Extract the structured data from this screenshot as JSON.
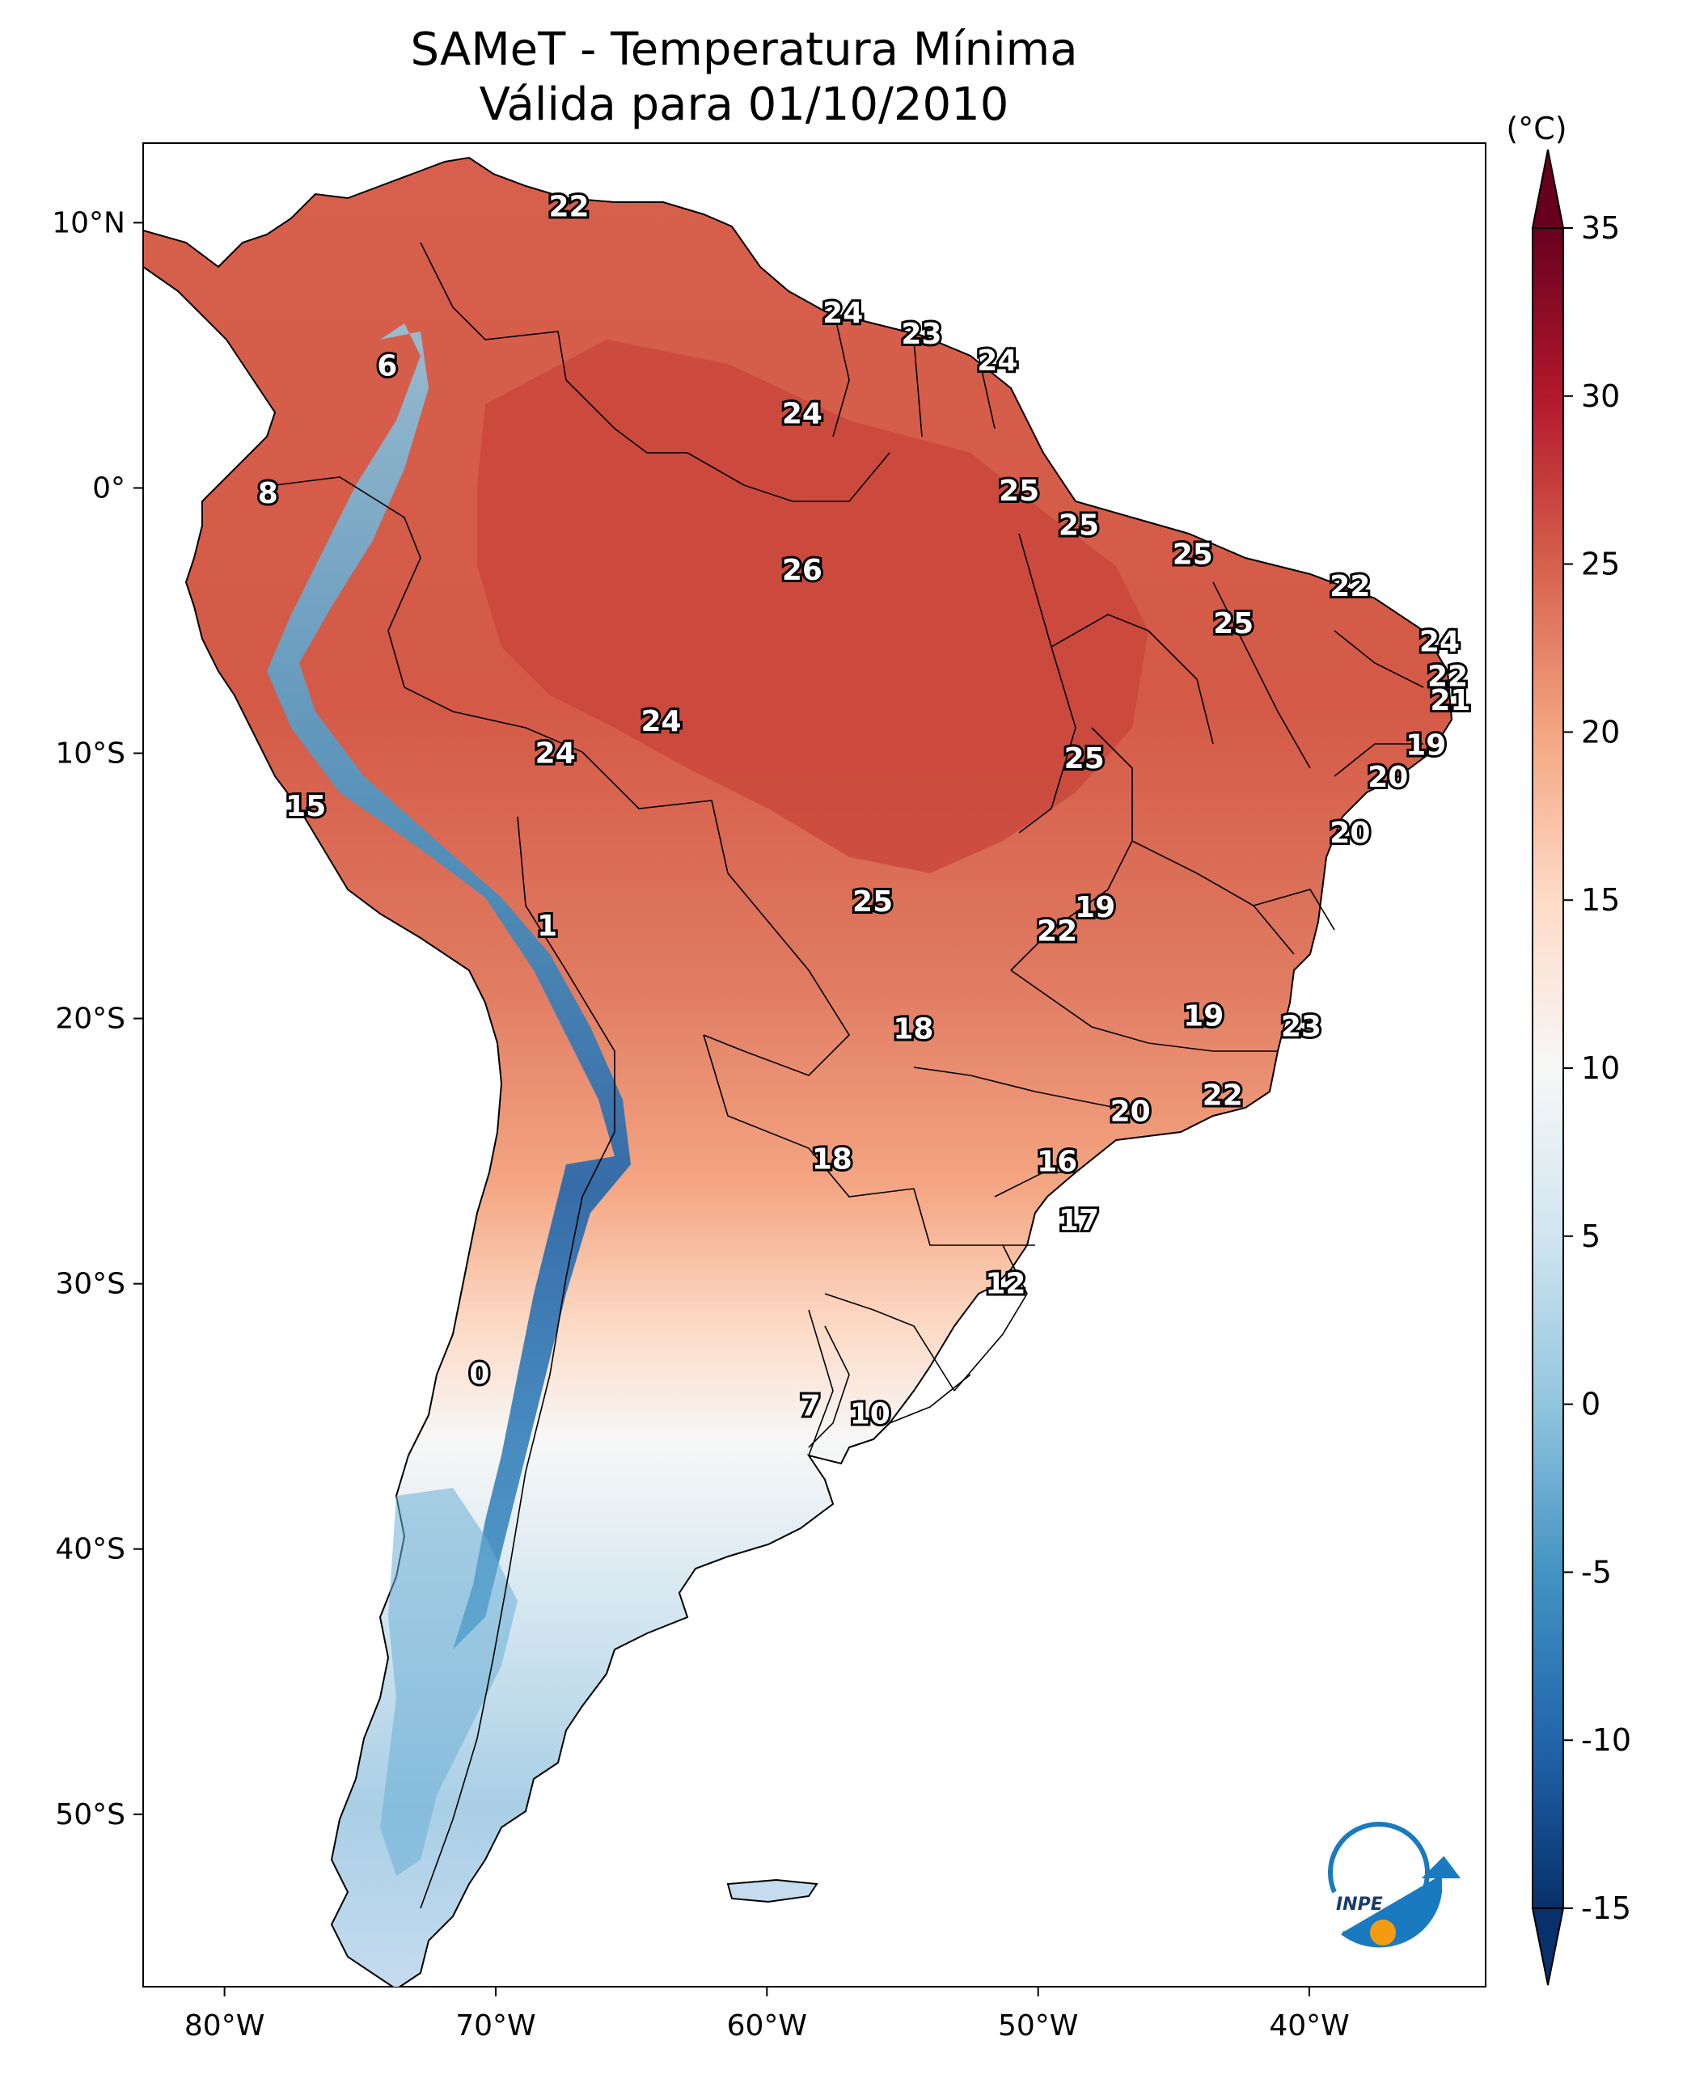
{
  "title": {
    "line1": "SAMeT - Temperatura Mínima",
    "line2": "Válida para 01/10/2010"
  },
  "colorbar": {
    "unit": "(°C)",
    "ticks": [
      "35",
      "30",
      "25",
      "20",
      "15",
      "10",
      "5",
      "0",
      "-5",
      "-10",
      "-15"
    ],
    "range": [
      -15,
      35
    ],
    "colors": [
      "#08306b",
      "#2166ac",
      "#4393c3",
      "#92c5de",
      "#d1e5f0",
      "#f7f7f7",
      "#fddbc7",
      "#f4a582",
      "#d6604d",
      "#b2182b",
      "#67001f"
    ]
  },
  "axes": {
    "lon_labels": [
      "80°W",
      "70°W",
      "60°W",
      "50°W",
      "40°W"
    ],
    "lat_labels": [
      "10°N",
      "0°",
      "10°S",
      "20°S",
      "30°S",
      "40°S",
      "50°S"
    ],
    "lon_range": [
      -83,
      -33.5
    ],
    "lat_range": [
      13,
      -56.5
    ]
  },
  "logo": {
    "text": "INPE",
    "icon": "inpe-logo-icon"
  },
  "station_values": [
    {
      "v": "22",
      "lon": -67.3,
      "lat": 10.6
    },
    {
      "v": "24",
      "lon": -57.2,
      "lat": 6.6
    },
    {
      "v": "23",
      "lon": -54.3,
      "lat": 5.8
    },
    {
      "v": "24",
      "lon": -51.5,
      "lat": 4.8
    },
    {
      "v": "6",
      "lon": -74.0,
      "lat": 4.6
    },
    {
      "v": "24",
      "lon": -58.7,
      "lat": 2.8
    },
    {
      "v": "8",
      "lon": -78.4,
      "lat": -0.2
    },
    {
      "v": "25",
      "lon": -50.7,
      "lat": -0.1
    },
    {
      "v": "25",
      "lon": -48.5,
      "lat": -1.4
    },
    {
      "v": "25",
      "lon": -44.3,
      "lat": -2.5
    },
    {
      "v": "26",
      "lon": -58.7,
      "lat": -3.1
    },
    {
      "v": "22",
      "lon": -38.5,
      "lat": -3.7
    },
    {
      "v": "25",
      "lon": -42.8,
      "lat": -5.1
    },
    {
      "v": "24",
      "lon": -35.2,
      "lat": -5.8
    },
    {
      "v": "22",
      "lon": -34.9,
      "lat": -7.1
    },
    {
      "v": "21",
      "lon": -34.8,
      "lat": -8.0
    },
    {
      "v": "24",
      "lon": -63.9,
      "lat": -8.8
    },
    {
      "v": "19",
      "lon": -35.7,
      "lat": -9.7
    },
    {
      "v": "25",
      "lon": -48.3,
      "lat": -10.2
    },
    {
      "v": "24",
      "lon": -67.8,
      "lat": -10.0
    },
    {
      "v": "20",
      "lon": -37.1,
      "lat": -10.9
    },
    {
      "v": "15",
      "lon": -77.0,
      "lat": -12.0
    },
    {
      "v": "20",
      "lon": -38.5,
      "lat": -13.0
    },
    {
      "v": "25",
      "lon": -56.1,
      "lat": -15.6
    },
    {
      "v": "19",
      "lon": -47.9,
      "lat": -15.8
    },
    {
      "v": "1",
      "lon": -68.1,
      "lat": -16.5
    },
    {
      "v": "22",
      "lon": -49.3,
      "lat": -16.7
    },
    {
      "v": "19",
      "lon": -43.9,
      "lat": -19.9
    },
    {
      "v": "18",
      "lon": -54.6,
      "lat": -20.4
    },
    {
      "v": "23",
      "lon": -40.3,
      "lat": -20.3
    },
    {
      "v": "22",
      "lon": -43.2,
      "lat": -22.9
    },
    {
      "v": "20",
      "lon": -46.6,
      "lat": -23.5
    },
    {
      "v": "18",
      "lon": -57.6,
      "lat": -25.3
    },
    {
      "v": "16",
      "lon": -49.3,
      "lat": -25.4
    },
    {
      "v": "17",
      "lon": -48.5,
      "lat": -27.6
    },
    {
      "v": "12",
      "lon": -51.2,
      "lat": -30.0
    },
    {
      "v": "0",
      "lon": -70.6,
      "lat": -33.4
    },
    {
      "v": "7",
      "lon": -58.4,
      "lat": -34.6
    },
    {
      "v": "10",
      "lon": -56.2,
      "lat": -34.9
    }
  ]
}
